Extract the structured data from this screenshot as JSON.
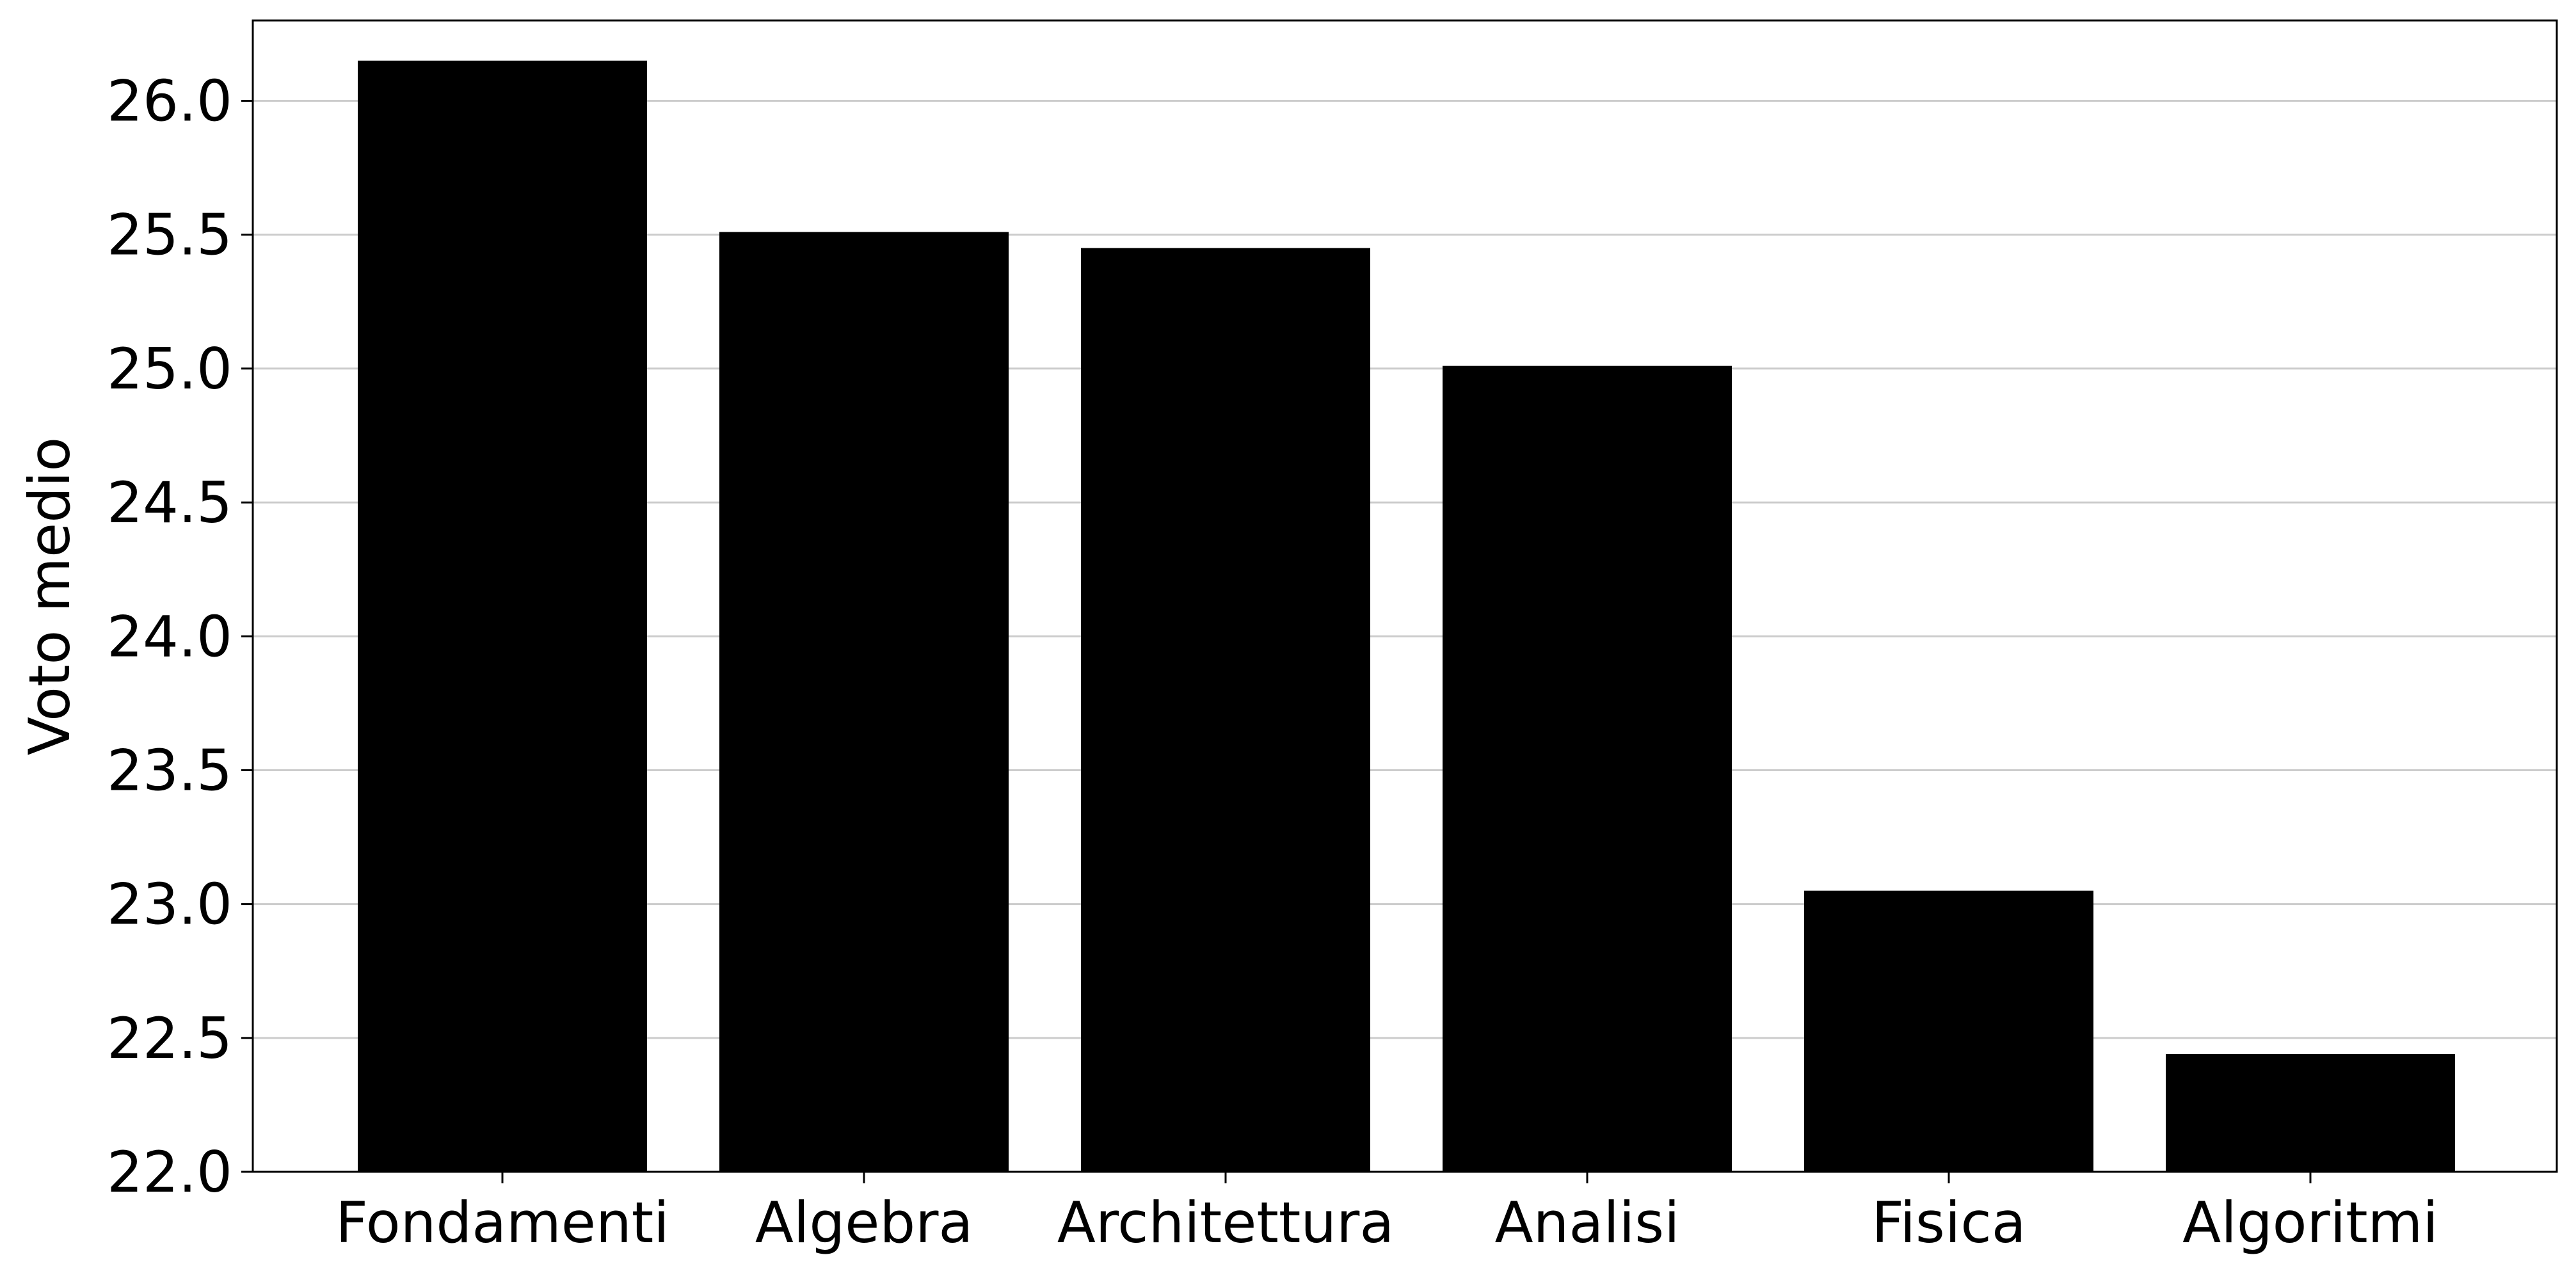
{
  "chart_data": {
    "type": "bar",
    "title": "",
    "xlabel": "",
    "ylabel": "Voto medio",
    "categories": [
      "Fondamenti",
      "Algebra",
      "Architettura",
      "Analisi",
      "Fisica",
      "Algoritmi"
    ],
    "values": [
      26.15,
      25.51,
      25.45,
      25.01,
      23.05,
      22.44
    ],
    "ylim": [
      22.0,
      26.3
    ],
    "yticks": [
      "22.0",
      "22.5",
      "23.0",
      "23.5",
      "24.0",
      "24.5",
      "25.0",
      "25.5",
      "26.0"
    ],
    "grid": "horizontal",
    "bar_color": "#000000",
    "grid_color": "#cccccc"
  }
}
